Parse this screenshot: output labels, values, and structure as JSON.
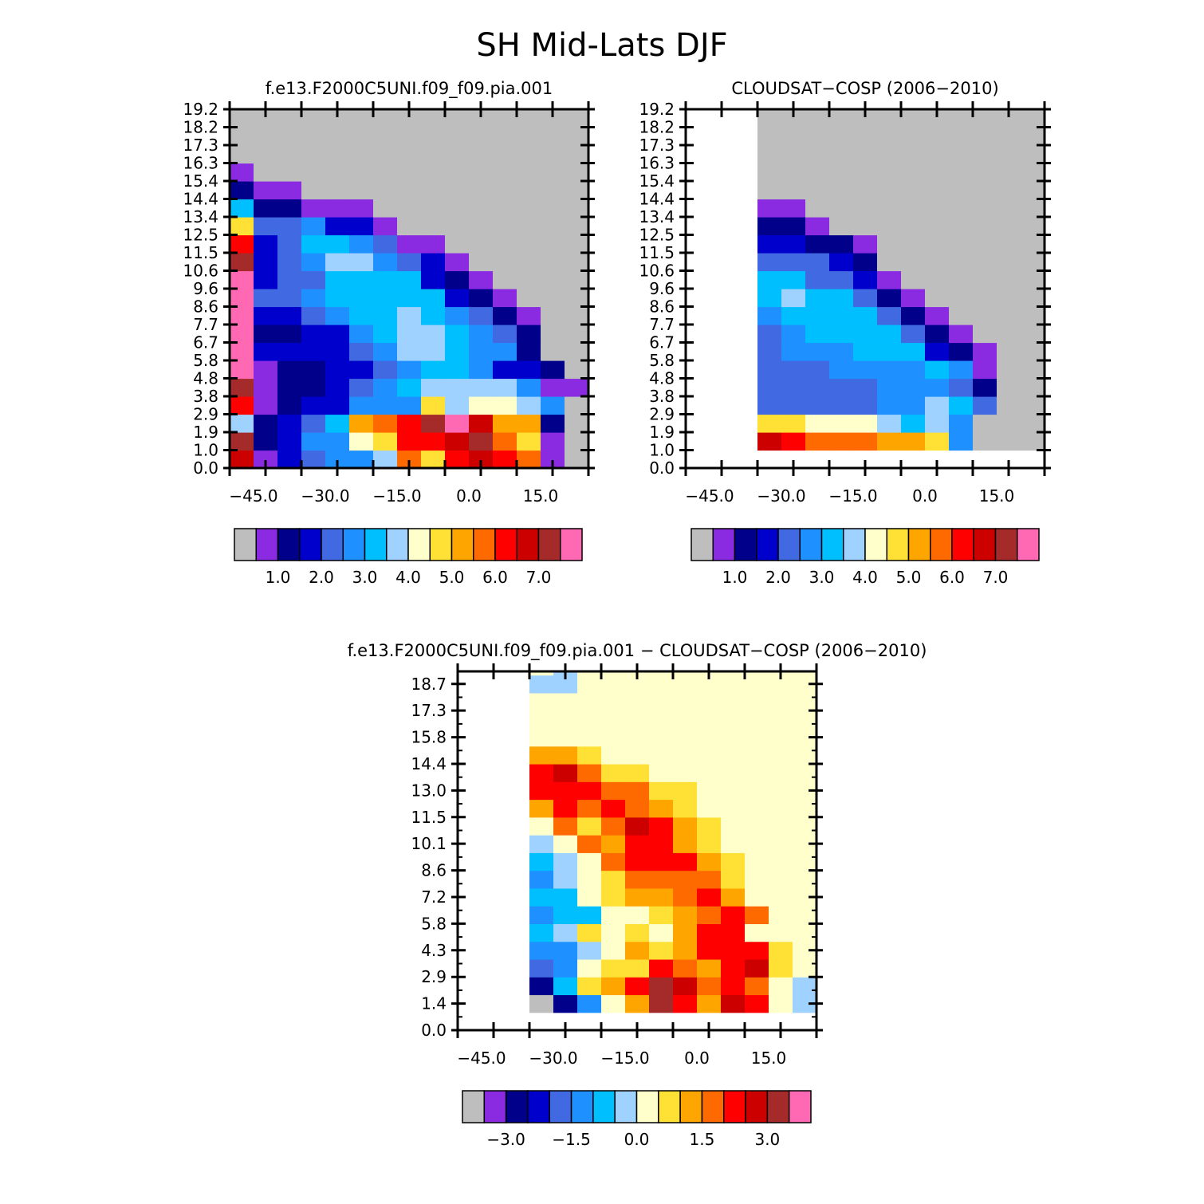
{
  "title": "SH Mid-Lats DJF",
  "colors": {
    "missing": "#bebebe",
    "palette": [
      "#bebebe",
      "#8a2be2",
      "#00008b",
      "#0000cd",
      "#4169e1",
      "#1e90ff",
      "#00bfff",
      "#a0d2ff",
      "#ffffcc",
      "#ffe135",
      "#ffa500",
      "#ff6a00",
      "#ff0000",
      "#cd0000",
      "#a52a2a",
      "#ff69b4"
    ]
  },
  "chart_data": [
    {
      "type": "heatmap",
      "title": "f.e13.F2000C5UNI.f09_f09.pia.001",
      "xlim": [
        -50,
        25
      ],
      "ylim": [
        0,
        19.2
      ],
      "x_ticks": [
        "-45.0",
        "-30.0",
        "-15.0",
        "0.0",
        "15.0"
      ],
      "x_tick_values": [
        -45,
        -30,
        -15,
        0,
        15
      ],
      "y_ticks": [
        "0.0",
        "1.0",
        "1.9",
        "2.9",
        "3.8",
        "4.8",
        "5.8",
        "6.7",
        "7.7",
        "8.6",
        "9.6",
        "10.6",
        "11.5",
        "12.5",
        "13.4",
        "14.4",
        "15.4",
        "16.3",
        "17.3",
        "18.2",
        "19.2"
      ],
      "y_tick_values": [
        0,
        0.96,
        1.92,
        2.88,
        3.84,
        4.8,
        5.76,
        6.72,
        7.68,
        8.64,
        9.6,
        10.56,
        11.52,
        12.48,
        13.44,
        14.4,
        15.36,
        16.32,
        17.28,
        18.24,
        19.2
      ],
      "x_edges": [
        -50,
        -45,
        -40,
        -35,
        -30,
        -25,
        -20,
        -15,
        -10,
        -5,
        0,
        5,
        10,
        15,
        20,
        25
      ],
      "y_edges": [
        0,
        0.96,
        1.92,
        2.88,
        3.84,
        4.8,
        5.76,
        6.72,
        7.68,
        8.64,
        9.6,
        10.56,
        11.52,
        12.48,
        13.44,
        14.4,
        15.36,
        16.32,
        17.28,
        18.24,
        19.2
      ],
      "values": [
        [
          13,
          1,
          3,
          4,
          5,
          5,
          7,
          11,
          9,
          12,
          13,
          12,
          11,
          1,
          -1
        ],
        [
          14,
          2,
          3,
          5,
          5,
          8,
          9,
          12,
          12,
          13,
          14,
          11,
          9,
          1,
          -1
        ],
        [
          7,
          2,
          3,
          4,
          6,
          10,
          11,
          12,
          14,
          15,
          13,
          10,
          10,
          2,
          -1
        ],
        [
          12,
          1,
          2,
          3,
          3,
          5,
          5,
          5,
          9,
          7,
          8,
          8,
          7,
          5,
          -1
        ],
        [
          14,
          1,
          2,
          2,
          3,
          4,
          5,
          6,
          7,
          7,
          7,
          7,
          5,
          1,
          1
        ],
        [
          15,
          1,
          2,
          2,
          3,
          3,
          4,
          5,
          6,
          6,
          5,
          3,
          3,
          2,
          -1
        ],
        [
          15,
          3,
          3,
          3,
          3,
          4,
          5,
          7,
          7,
          6,
          5,
          5,
          2,
          -1,
          -1
        ],
        [
          15,
          2,
          2,
          3,
          3,
          5,
          6,
          7,
          7,
          6,
          5,
          4,
          2,
          -1,
          -1
        ],
        [
          15,
          3,
          3,
          4,
          5,
          6,
          6,
          7,
          6,
          5,
          4,
          2,
          1,
          -1,
          -1
        ],
        [
          15,
          4,
          4,
          5,
          6,
          6,
          6,
          6,
          6,
          3,
          2,
          1,
          -1,
          -1,
          -1
        ],
        [
          15,
          3,
          4,
          4,
          6,
          6,
          6,
          6,
          3,
          2,
          1,
          -1,
          -1,
          -1,
          -1
        ],
        [
          14,
          3,
          4,
          5,
          7,
          7,
          5,
          4,
          3,
          1,
          -1,
          -1,
          -1,
          -1,
          -1
        ],
        [
          12,
          3,
          4,
          6,
          6,
          5,
          4,
          1,
          1,
          -1,
          -1,
          -1,
          -1,
          -1,
          -1
        ],
        [
          9,
          4,
          4,
          5,
          3,
          3,
          1,
          -1,
          -1,
          -1,
          -1,
          -1,
          -1,
          -1,
          -1
        ],
        [
          6,
          2,
          2,
          1,
          1,
          1,
          -1,
          -1,
          -1,
          -1,
          -1,
          -1,
          -1,
          -1,
          -1
        ],
        [
          2,
          1,
          1,
          -1,
          -1,
          -1,
          -1,
          -1,
          -1,
          -1,
          -1,
          -1,
          -1,
          -1,
          -1
        ],
        [
          1,
          -1,
          -1,
          -1,
          -1,
          -1,
          -1,
          -1,
          -1,
          -1,
          -1,
          -1,
          -1,
          -1,
          -1
        ],
        [
          -1,
          -1,
          -1,
          -1,
          -1,
          -1,
          -1,
          -1,
          -1,
          -1,
          -1,
          -1,
          -1,
          -1,
          -1
        ],
        [
          -1,
          -1,
          -1,
          -1,
          -1,
          -1,
          -1,
          -1,
          -1,
          -1,
          -1,
          -1,
          -1,
          -1,
          -1
        ],
        [
          -1,
          -1,
          -1,
          -1,
          -1,
          -1,
          -1,
          -1,
          -1,
          -1,
          -1,
          -1,
          -1,
          -1,
          -1
        ]
      ],
      "colorbar_labels": [
        "1.0",
        "2.0",
        "3.0",
        "4.0",
        "5.0",
        "6.0",
        "7.0"
      ]
    },
    {
      "type": "heatmap",
      "title": "CLOUDSAT-COSP (2006-2010)",
      "xlim": [
        -50,
        25
      ],
      "ylim": [
        0,
        19.2
      ],
      "x_ticks": [
        "-45.0",
        "-30.0",
        "-15.0",
        "0.0",
        "15.0"
      ],
      "x_tick_values": [
        -45,
        -30,
        -15,
        0,
        15
      ],
      "y_ticks": [
        "0.0",
        "1.0",
        "1.9",
        "2.9",
        "3.8",
        "4.8",
        "5.8",
        "6.7",
        "7.7",
        "8.6",
        "9.6",
        "10.6",
        "11.5",
        "12.5",
        "13.4",
        "14.4",
        "15.4",
        "16.3",
        "17.3",
        "18.2",
        "19.2"
      ],
      "y_tick_values": [
        0,
        0.96,
        1.92,
        2.88,
        3.84,
        4.8,
        5.76,
        6.72,
        7.68,
        8.64,
        9.6,
        10.56,
        11.52,
        12.48,
        13.44,
        14.4,
        15.36,
        16.32,
        17.28,
        18.24,
        19.2
      ],
      "x_edges": [
        -35,
        -30,
        -25,
        -20,
        -15,
        -10,
        -5,
        0,
        5,
        10,
        15,
        20,
        25
      ],
      "y_edges": [
        0.96,
        1.92,
        2.88,
        3.84,
        4.8,
        5.76,
        6.72,
        7.68,
        8.64,
        9.6,
        10.56,
        11.52,
        12.48,
        13.44,
        14.4,
        15.36,
        16.32,
        17.28,
        18.24,
        19.2
      ],
      "values": [
        [
          13,
          12,
          11,
          11,
          11,
          10,
          10,
          9,
          5,
          -1,
          -1,
          -1
        ],
        [
          9,
          9,
          8,
          8,
          8,
          7,
          6,
          7,
          5,
          -1,
          -1,
          -1
        ],
        [
          4,
          4,
          4,
          4,
          4,
          5,
          5,
          7,
          6,
          4,
          -1,
          -1
        ],
        [
          4,
          4,
          4,
          4,
          4,
          5,
          5,
          5,
          4,
          2,
          -1,
          -1
        ],
        [
          4,
          4,
          4,
          5,
          5,
          5,
          5,
          6,
          5,
          1,
          -1,
          -1
        ],
        [
          4,
          5,
          5,
          5,
          6,
          6,
          6,
          3,
          2,
          1,
          -1,
          -1
        ],
        [
          4,
          5,
          6,
          6,
          6,
          6,
          4,
          2,
          1,
          -1,
          -1,
          -1
        ],
        [
          5,
          6,
          6,
          6,
          6,
          4,
          2,
          1,
          -1,
          -1,
          -1,
          -1
        ],
        [
          6,
          7,
          6,
          6,
          4,
          2,
          1,
          -1,
          -1,
          -1,
          -1,
          -1
        ],
        [
          6,
          6,
          4,
          4,
          3,
          1,
          -1,
          -1,
          -1,
          -1,
          -1,
          -1
        ],
        [
          4,
          4,
          4,
          3,
          2,
          -1,
          -1,
          -1,
          -1,
          -1,
          -1,
          -1
        ],
        [
          3,
          3,
          2,
          2,
          1,
          -1,
          -1,
          -1,
          -1,
          -1,
          -1,
          -1
        ],
        [
          2,
          2,
          1,
          -1,
          -1,
          -1,
          -1,
          -1,
          -1,
          -1,
          -1,
          -1
        ],
        [
          1,
          1,
          -1,
          -1,
          -1,
          -1,
          -1,
          -1,
          -1,
          -1,
          -1,
          -1
        ],
        [
          -1,
          -1,
          -1,
          -1,
          -1,
          -1,
          -1,
          -1,
          -1,
          -1,
          -1,
          -1
        ],
        [
          -1,
          -1,
          -1,
          -1,
          -1,
          -1,
          -1,
          -1,
          -1,
          -1,
          -1,
          -1
        ],
        [
          -1,
          -1,
          -1,
          -1,
          -1,
          -1,
          -1,
          -1,
          -1,
          -1,
          -1,
          -1
        ],
        [
          -1,
          -1,
          -1,
          -1,
          -1,
          -1,
          -1,
          -1,
          -1,
          -1,
          -1,
          -1
        ],
        [
          -1,
          -1,
          -1,
          -1,
          -1,
          -1,
          -1,
          -1,
          -1,
          -1,
          -1,
          -1
        ]
      ],
      "colorbar_labels": [
        "1.0",
        "2.0",
        "3.0",
        "4.0",
        "5.0",
        "6.0",
        "7.0"
      ]
    },
    {
      "type": "heatmap",
      "title": "f.e13.F2000C5UNI.f09_f09.pia.001 - CLOUDSAT-COSP (2006-2010)",
      "xlim": [
        -50,
        25
      ],
      "ylim": [
        0,
        19.4
      ],
      "x_ticks": [
        "-45.0",
        "-30.0",
        "-15.0",
        "0.0",
        "15.0"
      ],
      "x_tick_values": [
        -45,
        -30,
        -15,
        0,
        15
      ],
      "y_ticks": [
        "0.0",
        "1.4",
        "2.9",
        "4.3",
        "5.8",
        "7.2",
        "8.6",
        "10.1",
        "11.5",
        "13.0",
        "14.4",
        "15.8",
        "17.3",
        "18.7"
      ],
      "y_tick_values": [
        0,
        1.44,
        2.88,
        4.32,
        5.76,
        7.2,
        8.64,
        10.08,
        11.52,
        12.96,
        14.4,
        15.84,
        17.28,
        18.72
      ],
      "x_edges": [
        -35,
        -30,
        -25,
        -20,
        -15,
        -10,
        -5,
        0,
        5,
        10,
        15,
        20,
        25
      ],
      "y_edges": [
        0.96,
        1.92,
        2.88,
        3.84,
        4.8,
        5.76,
        6.72,
        7.68,
        8.64,
        9.6,
        10.56,
        11.52,
        12.48,
        13.44,
        14.4,
        15.36,
        16.32,
        17.28,
        18.24,
        19.2,
        19.4
      ],
      "values": [
        [
          0,
          2,
          5,
          8,
          10,
          14,
          12,
          10,
          13,
          12,
          8,
          7
        ],
        [
          2,
          6,
          9,
          10,
          12,
          14,
          13,
          11,
          12,
          11,
          8,
          7
        ],
        [
          4,
          5,
          8,
          9,
          9,
          12,
          11,
          10,
          12,
          13,
          9,
          8
        ],
        [
          5,
          5,
          7,
          8,
          10,
          9,
          10,
          12,
          12,
          12,
          9,
          8
        ],
        [
          6,
          7,
          9,
          8,
          9,
          8,
          10,
          12,
          12,
          8,
          8,
          8
        ],
        [
          5,
          6,
          6,
          8,
          8,
          9,
          10,
          11,
          12,
          11,
          8,
          8
        ],
        [
          6,
          6,
          8,
          9,
          10,
          10,
          11,
          12,
          10,
          8,
          8,
          8
        ],
        [
          5,
          7,
          8,
          9,
          11,
          11,
          11,
          11,
          9,
          8,
          8,
          8
        ],
        [
          6,
          7,
          8,
          11,
          12,
          12,
          12,
          10,
          9,
          8,
          8,
          8
        ],
        [
          7,
          8,
          11,
          10,
          12,
          12,
          10,
          9,
          8,
          8,
          8,
          8
        ],
        [
          8,
          11,
          9,
          11,
          13,
          12,
          10,
          9,
          8,
          8,
          8,
          8
        ],
        [
          10,
          12,
          11,
          12,
          11,
          10,
          9,
          8,
          8,
          8,
          8,
          8
        ],
        [
          12,
          12,
          12,
          11,
          11,
          9,
          9,
          8,
          8,
          8,
          8,
          8
        ],
        [
          12,
          13,
          11,
          9,
          9,
          8,
          8,
          8,
          8,
          8,
          8,
          8
        ],
        [
          10,
          10,
          9,
          8,
          8,
          8,
          8,
          8,
          8,
          8,
          8,
          8
        ],
        [
          8,
          8,
          8,
          8,
          8,
          8,
          8,
          8,
          8,
          8,
          8,
          8
        ],
        [
          8,
          8,
          8,
          8,
          8,
          8,
          8,
          8,
          8,
          8,
          8,
          8
        ],
        [
          8,
          8,
          8,
          8,
          8,
          8,
          8,
          8,
          8,
          8,
          8,
          8
        ],
        [
          7,
          7,
          8,
          8,
          8,
          8,
          8,
          8,
          8,
          8,
          8,
          8
        ],
        [
          8,
          7,
          8,
          8,
          8,
          8,
          8,
          8,
          8,
          8,
          8,
          8
        ]
      ],
      "colorbar_labels": [
        "-3.0",
        "-1.5",
        "0.0",
        "1.5",
        "3.0"
      ]
    }
  ]
}
